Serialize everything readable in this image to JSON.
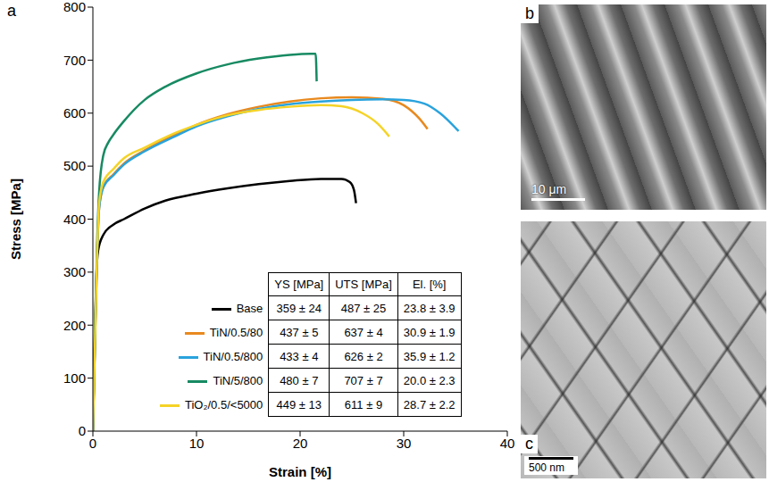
{
  "chart_data": {
    "type": "line",
    "x_label": "Strain [%]",
    "y_label": "Stress [MPa]",
    "xlim": [
      0,
      40
    ],
    "xticks": [
      0,
      10,
      20,
      30,
      40
    ],
    "ylim": [
      0,
      800
    ],
    "yticks": [
      0,
      100,
      200,
      300,
      400,
      500,
      600,
      700,
      800
    ],
    "grid": false,
    "legend": "lower right",
    "series": [
      {
        "name": "Base",
        "color": "#000000",
        "x": [
          0,
          0.4,
          0.5,
          1,
          2,
          3,
          5,
          7,
          10,
          13,
          16,
          19,
          22,
          24,
          24.8,
          25.2,
          25.4
        ],
        "values": [
          0,
          320,
          340,
          370,
          390,
          400,
          420,
          435,
          448,
          458,
          466,
          472,
          476,
          476,
          470,
          455,
          430
        ]
      },
      {
        "name": "TiN/0.5/80",
        "color": "#e8891e",
        "x": [
          0,
          0.4,
          0.6,
          1,
          2,
          3,
          5,
          8,
          10,
          13,
          16,
          19,
          22,
          25,
          28,
          30,
          31.5,
          32.3
        ],
        "values": [
          0,
          330,
          420,
          460,
          485,
          505,
          530,
          560,
          578,
          598,
          612,
          622,
          628,
          630,
          627,
          615,
          590,
          570
        ]
      },
      {
        "name": "TiN/0.5/800",
        "color": "#29a3dd",
        "x": [
          0,
          0.4,
          0.6,
          1,
          2,
          3,
          5,
          8,
          10,
          13,
          16,
          19,
          22,
          25,
          28,
          30,
          32,
          33.5,
          35.3
        ],
        "values": [
          0,
          330,
          420,
          460,
          483,
          503,
          528,
          557,
          575,
          594,
          608,
          617,
          622,
          625,
          626,
          625,
          618,
          600,
          566
        ]
      },
      {
        "name": "TiN/5/800",
        "color": "#178a62",
        "x": [
          0,
          0.4,
          0.6,
          1,
          1.5,
          2,
          3,
          5,
          7,
          10,
          13,
          16,
          19,
          21,
          21.5,
          21.6
        ],
        "values": [
          0,
          350,
          450,
          520,
          545,
          560,
          585,
          625,
          650,
          675,
          692,
          703,
          710,
          712,
          712,
          660
        ]
      },
      {
        "name": "TiO₂/0.5/<5000",
        "color": "#f5d327",
        "x": [
          0,
          0.4,
          0.6,
          1,
          2,
          3,
          5,
          8,
          10,
          13,
          16,
          19,
          22,
          24,
          26,
          27.5,
          28.6
        ],
        "values": [
          0,
          330,
          430,
          470,
          495,
          515,
          535,
          563,
          578,
          596,
          606,
          612,
          615,
          613,
          600,
          580,
          556
        ]
      }
    ]
  },
  "table": {
    "header": [
      "YS [MPa]",
      "UTS [MPa]",
      "El. [%]"
    ],
    "rows": [
      [
        "359 ± 24",
        "487 ± 25",
        "23.8 ± 3.9"
      ],
      [
        "437 ± 5",
        "637 ± 4",
        "30.9 ± 1.9"
      ],
      [
        "433 ± 4",
        "626 ± 2",
        "35.9 ± 1.2"
      ],
      [
        "480 ± 7",
        "707 ± 7",
        "20.0 ± 2.3"
      ],
      [
        "449 ± 13",
        "611 ± 9",
        "28.7 ± 2.2"
      ]
    ]
  },
  "panel_labels": [
    "a",
    "b",
    "c"
  ],
  "scale_bars": [
    "10 μm",
    "500 nm"
  ]
}
